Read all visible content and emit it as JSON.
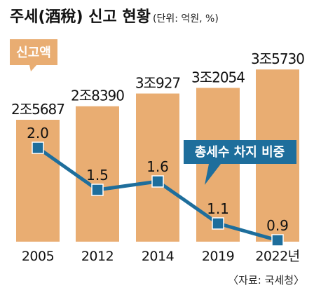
{
  "chart_data": {
    "type": "bar",
    "title": "주세(酒稅) 신고 현황",
    "unit_note": "(단위: 억원, %)",
    "categories": [
      "2005",
      "2012",
      "2014",
      "2019",
      "2022년"
    ],
    "series": [
      {
        "name": "신고액",
        "type": "bar",
        "values": [
          25687,
          28390,
          30927,
          32054,
          35730
        ],
        "labels": [
          "2조5687",
          "2조8390",
          "3조927",
          "3조2054",
          "3조5730"
        ],
        "color": "#E9AD72"
      },
      {
        "name": "총세수 차지 비중",
        "type": "line",
        "values": [
          2.0,
          1.5,
          1.6,
          1.1,
          0.9
        ],
        "labels": [
          "2.0",
          "1.5",
          "1.6",
          "1.1",
          "0.9"
        ],
        "color": "#1E6E9C"
      }
    ],
    "source": "〈자료: 국세청〉",
    "grid": false
  }
}
